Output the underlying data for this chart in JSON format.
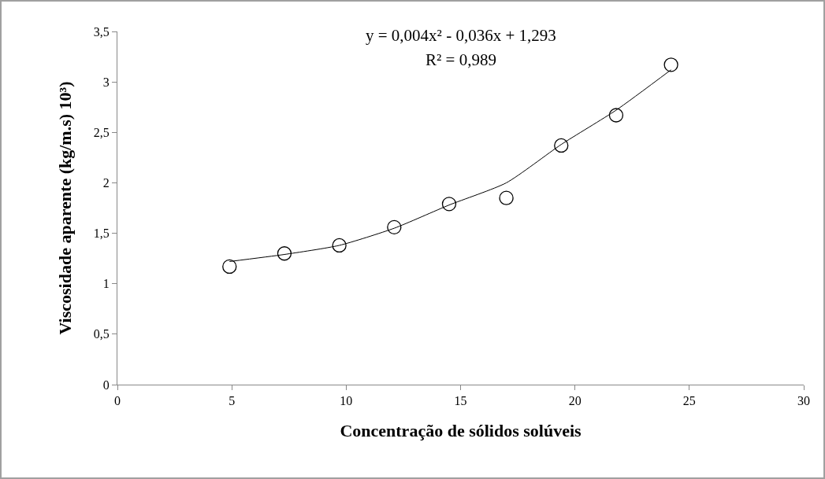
{
  "chart_data": {
    "type": "scatter",
    "xlabel": "Concentração de sólidos solúveis",
    "ylabel": "Viscosidade aparente (kg/m.s) 10³)",
    "annotations": [
      "y = 0,004x² - 0,036x + 1,293",
      "R² = 0,989"
    ],
    "xlim": [
      0,
      30
    ],
    "xticks": [
      0,
      5,
      10,
      15,
      20,
      25,
      30
    ],
    "ylim": [
      0,
      3.5
    ],
    "yticks": [
      0,
      {
        "value": 0.5,
        "label": "0,5"
      },
      1,
      {
        "value": 1.5,
        "label": "1,5"
      },
      2,
      {
        "value": 2.5,
        "label": "2,5"
      },
      3,
      {
        "value": 3.5,
        "label": "3,5"
      }
    ],
    "grid": false,
    "legend": false,
    "series": [
      {
        "marker": "circle",
        "color": "#000000",
        "x": [
          4.9,
          7.3,
          9.7,
          12.1,
          14.5,
          17.0,
          19.4,
          21.8,
          24.2
        ],
        "values": [
          1.17,
          1.3,
          1.38,
          1.56,
          1.79,
          1.85,
          2.37,
          2.67,
          3.17
        ]
      },
      {
        "type": "line",
        "marker": "none",
        "color": "#000000",
        "line_style": "solid",
        "x": [
          4.9,
          7.3,
          9.7,
          12.1,
          14.5,
          17.0,
          19.4,
          21.8,
          24.2
        ],
        "values": [
          1.22,
          1.29,
          1.38,
          1.55,
          1.78,
          2.0,
          2.38,
          2.72,
          3.12
        ]
      }
    ]
  }
}
